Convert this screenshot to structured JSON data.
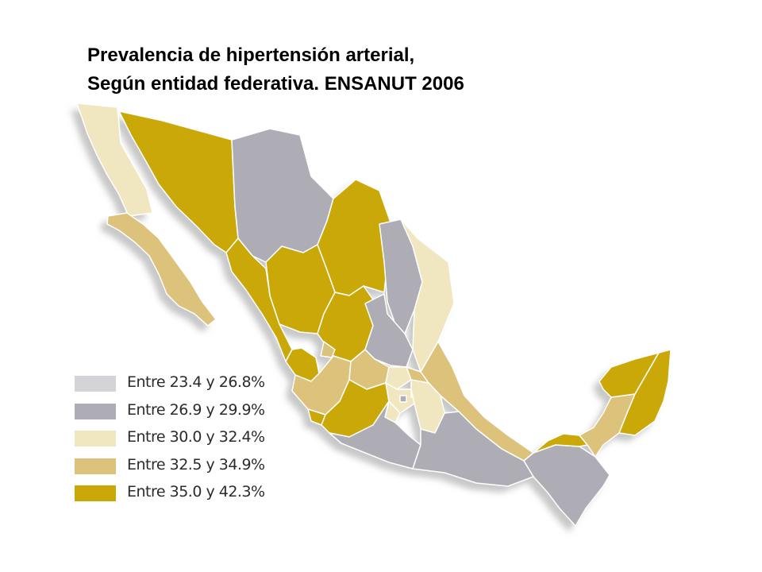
{
  "title": {
    "line1": "Prevalencia de hipertensión arterial,",
    "line2": "Según entidad federativa. ENSANUT 2006"
  },
  "legend": [
    {
      "label": "Entre 23.4 y 26.8%",
      "color": "#d4d4d8"
    },
    {
      "label": "Entre 26.9 y 29.9%",
      "color": "#aeadb6"
    },
    {
      "label": "Entre 30.0 y 32.4%",
      "color": "#f0e6bf"
    },
    {
      "label": "Entre 32.5 y 34.9%",
      "color": "#dcc27a"
    },
    {
      "label": "Entre 35.0 y 42.3%",
      "color": "#c9a808"
    }
  ],
  "map": {
    "background": "#ffffff",
    "border_color": "#ffffff",
    "shadow_color": "#c8c8c8"
  }
}
